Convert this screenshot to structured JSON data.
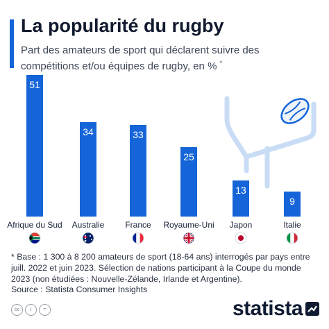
{
  "header": {
    "title": "La popularité du rugby",
    "subtitle": "Part des amateurs de sport qui déclarent suivre des compétitions et/ou équipes de rugby, en %",
    "subtitle_marker": "*"
  },
  "chart_data": {
    "type": "bar",
    "categories": [
      "Afrique du Sud",
      "Australie",
      "France",
      "Royaume-Uni",
      "Japon",
      "Italie"
    ],
    "values": [
      51,
      34,
      33,
      25,
      13,
      9
    ],
    "unit": "%",
    "bar_color": "#1565d8",
    "label_color": "#ffffff",
    "flags": [
      "south-africa-flag",
      "australia-flag",
      "france-flag",
      "united-kingdom-flag",
      "japan-flag",
      "italy-flag"
    ],
    "decoration": [
      "rugby-goal-posts-icon",
      "rugby-ball-icon"
    ]
  },
  "footer": {
    "footnote": "* Base : 1 300 à 8 200 amateurs de sport (18-64 ans) interrogés par pays entre juill. 2022 et juin 2023. Sélection de nations participant à la Coupe du monde 2023 (non étudiées : Nouvelle-Zélande, Irlande et Argentine).",
    "source": "Source : Statista Consumer Insights",
    "license_icons": [
      "creative-commons-icon",
      "attribution-icon",
      "no-derivatives-icon"
    ],
    "license_labels": [
      "cc",
      "i",
      "="
    ],
    "brand": "statista"
  }
}
